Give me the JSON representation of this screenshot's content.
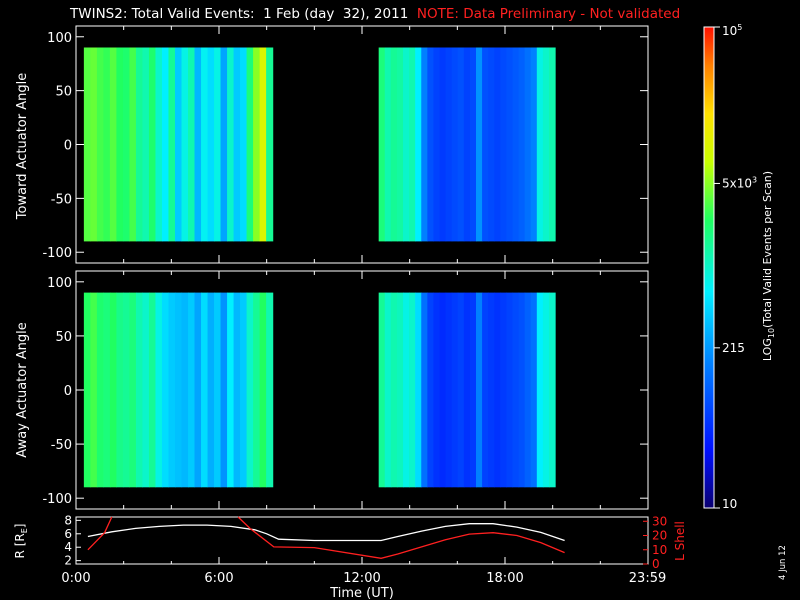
{
  "title": {
    "main": "TWINS2: Total Valid Events:  1 Feb (day  32), 2011",
    "note": "NOTE: Data Preliminary - Not validated"
  },
  "stamp": "4 Jun 12",
  "colors": {
    "note": "#ff2020",
    "frame": "#ffffff",
    "lshell": "#ff2020",
    "radius": "#ffffff"
  },
  "chart_data": [
    {
      "type": "heatmap",
      "name": "toward",
      "ylabel": "Toward Actuator Angle",
      "ylim": [
        -110,
        110
      ],
      "yticks": [
        100,
        50,
        0,
        -50,
        -100
      ],
      "xlim": [
        0,
        24
      ],
      "data_extent": {
        "y": [
          -90,
          90
        ]
      },
      "segments": [
        [
          0.33,
          8.25
        ],
        [
          12.7,
          20.1
        ]
      ],
      "columns_log": [
        3.55,
        3.6,
        3.5,
        3.45,
        3.55,
        3.4,
        3.35,
        3.5,
        3.2,
        3.1,
        3.35,
        3.0,
        2.8,
        3.2,
        2.6,
        2.9,
        3.1,
        2.5,
        2.85,
        2.7,
        2.9,
        2.4,
        3.0,
        2.6,
        2.7,
        3.3,
        3.7,
        4.0,
        3.2,
        3.3,
        3.1,
        3.2,
        3.15,
        3.0,
        3.1,
        2.8,
        2.2,
        1.9,
        1.8,
        1.75,
        1.8,
        1.85,
        1.9,
        1.8,
        1.85,
        2.3,
        1.9,
        1.85,
        1.8,
        1.85,
        1.9,
        1.95,
        2.0,
        2.1,
        2.2,
        2.9,
        3.0,
        3.1
      ]
    },
    {
      "type": "heatmap",
      "name": "away",
      "ylabel": "Away Actuator Angle",
      "ylim": [
        -110,
        110
      ],
      "yticks": [
        100,
        50,
        0,
        -50,
        -100
      ],
      "xlim": [
        0,
        24
      ],
      "data_extent": {
        "y": [
          -90,
          90
        ]
      },
      "segments": [
        [
          0.33,
          8.25
        ],
        [
          12.7,
          20.1
        ]
      ],
      "columns_log": [
        3.4,
        3.5,
        3.35,
        3.3,
        3.4,
        3.25,
        3.2,
        3.3,
        3.1,
        3.0,
        3.2,
        2.9,
        2.7,
        2.6,
        2.55,
        2.5,
        2.6,
        2.4,
        2.7,
        2.45,
        2.6,
        2.3,
        2.8,
        2.5,
        2.6,
        3.0,
        3.2,
        3.4,
        3.1,
        3.2,
        3.0,
        3.1,
        3.05,
        2.9,
        3.0,
        2.7,
        2.1,
        1.8,
        1.7,
        1.65,
        1.7,
        1.75,
        1.8,
        1.7,
        1.75,
        2.2,
        1.8,
        1.75,
        1.7,
        1.75,
        1.8,
        1.85,
        1.9,
        2.0,
        2.1,
        2.8,
        2.9,
        3.0
      ]
    },
    {
      "type": "line",
      "name": "orbit",
      "ylabel_left": "R [R",
      "ylabel_left_sub": "E",
      "ylabel_left_end": "]",
      "ylabel_right": "L Shell",
      "ylim_left": [
        1.5,
        8.5
      ],
      "yticks_left": [
        8,
        6,
        4,
        2
      ],
      "ylim_right": [
        0,
        33
      ],
      "yticks_right": [
        30,
        20,
        10,
        0
      ],
      "xlabel": "Time (UT)",
      "xlim": [
        0,
        24
      ],
      "xtick_values": [
        0,
        6,
        12,
        18,
        23.98
      ],
      "xtick_labels": [
        "0:00",
        "6:00",
        "12:00",
        "18:00",
        "23:59"
      ],
      "series": [
        {
          "axis": "left",
          "color": "#ffffff",
          "x": [
            0.5,
            1.5,
            2.5,
            3.5,
            4.5,
            5.5,
            6.5,
            7.5,
            8.0,
            8.5,
            10,
            12.8,
            13.5,
            14.5,
            15.5,
            16.5,
            17.5,
            18.5,
            19.5,
            20.5
          ],
          "y": [
            5.6,
            6.3,
            6.8,
            7.1,
            7.3,
            7.3,
            7.1,
            6.6,
            6.0,
            5.2,
            5.0,
            5.0,
            5.6,
            6.4,
            7.1,
            7.5,
            7.5,
            7.0,
            6.2,
            5.0
          ]
        },
        {
          "axis": "right",
          "color": "#ff2020",
          "x": [
            0.5,
            1.2,
            1.5
          ],
          "y": [
            10,
            22,
            33
          ]
        },
        {
          "axis": "right",
          "color": "#ff2020",
          "x": [
            6.8,
            7.3,
            8.3,
            10,
            12.8,
            13.5,
            14.5,
            15.5,
            16.5,
            17.5,
            18.5,
            19.5,
            20.5
          ],
          "y": [
            33,
            25,
            12,
            11.5,
            4,
            7,
            12,
            17,
            21,
            22,
            20,
            15,
            8
          ]
        }
      ]
    }
  ],
  "colorbar": {
    "label": "LOG",
    "label_sub": "10",
    "label_rest": "(Total Valid  Events  per Scan)",
    "range_log": [
      1,
      5
    ],
    "ticks": [
      {
        "value_log": 5,
        "base": "10",
        "exp": "5"
      },
      {
        "value_log": 3.699,
        "base": "5x10",
        "exp": "3"
      },
      {
        "value_log": 2.332,
        "base": "215",
        "exp": ""
      },
      {
        "value_log": 1,
        "base": "10",
        "exp": ""
      }
    ]
  }
}
